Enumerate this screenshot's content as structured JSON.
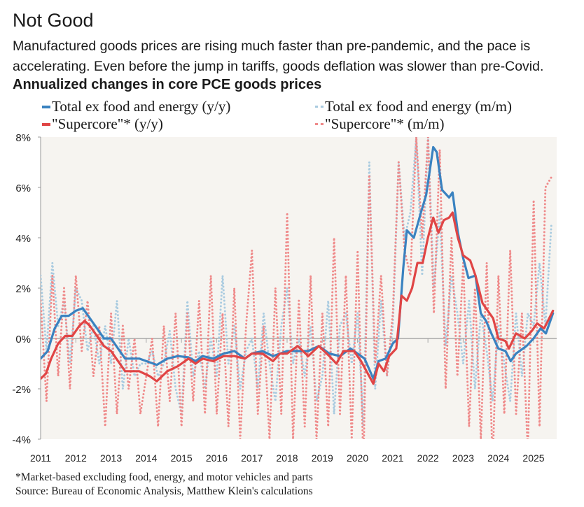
{
  "header": {
    "title": "Not Good",
    "subtitle": "Manufactured goods prices are rising much faster than pre-pandemic, and the pace is accelerating. Even before the jump in tariffs, goods deflation was slower than pre-Covid."
  },
  "footer": {
    "note": "*Market-based excluding food, energy, and motor vehicles and parts",
    "source": "Source: Bureau of Economic Analysis, Matthew Klein's calculations"
  },
  "chart_data": {
    "type": "line",
    "title": "Annualized changes in core PCE goods prices",
    "xlabel": "",
    "ylabel": "",
    "xlim": [
      2011.0,
      2025.65
    ],
    "ylim": [
      -4,
      8
    ],
    "yticks": [
      -4,
      -2,
      0,
      2,
      4,
      6,
      8
    ],
    "ytick_labels": [
      "-4%",
      "-2%",
      "0%",
      "2%",
      "4%",
      "6%",
      "8%"
    ],
    "xticks": [
      2011,
      2012,
      2013,
      2014,
      2015,
      2016,
      2017,
      2018,
      2019,
      2020,
      2021,
      2022,
      2023,
      2024,
      2025
    ],
    "xtick_labels": [
      "2011",
      "2012",
      "2013",
      "2014",
      "2015",
      "2016",
      "2017",
      "2018",
      "2019",
      "2020",
      "2021",
      "2022",
      "2023",
      "2024",
      "2025"
    ],
    "legend_position": "top",
    "grid": false,
    "colors": {
      "blue": "#3a82c0",
      "red": "#e04545",
      "light_blue": "#a9cbe0",
      "light_red": "#ef8a8a",
      "plot_bg": "#f6f4f0"
    },
    "series": [
      {
        "name": "Total ex food and energy (m/m)",
        "style": "dotted",
        "color": "#a9cbe0",
        "x_start": 2011.0,
        "x_step": 0.1667,
        "values": [
          2.5,
          -0.5,
          3.0,
          0.5,
          1.5,
          -1.0,
          2.0,
          1.5,
          -0.5,
          0.5,
          -1.0,
          0.5,
          -1.0,
          1.5,
          -2.0,
          0.0,
          -1.5,
          -1.0,
          -1.0,
          -0.5,
          -1.5,
          -1.0,
          0.3,
          -2.0,
          -3.0,
          1.5,
          -1.5,
          -0.5,
          -2.0,
          0.0,
          -1.5,
          2.5,
          -1.0,
          0.5,
          -2.0,
          -0.5,
          0.0,
          -2.0,
          1.0,
          -1.0,
          -2.5,
          0.5,
          2.0,
          -1.0,
          0.0,
          -1.5,
          0.5,
          -2.5,
          -1.5,
          1.5,
          -3.0,
          0.5,
          1.0,
          -1.0,
          1.0,
          -3.5,
          7.0,
          -2.0,
          1.5,
          -1.5,
          0.5,
          7.0,
          4.0,
          5.0,
          8.0,
          2.5,
          8.0,
          2.0,
          5.0,
          -0.3,
          2.5,
          1.0,
          -1.0,
          1.5,
          -2.0,
          1.0,
          -0.5,
          -2.5,
          0.5,
          -1.0,
          -2.5,
          1.0,
          -1.5,
          1.0,
          0.5,
          3.0,
          0.5,
          4.5
        ]
      },
      {
        "name": "\"Supercore\"* (m/m)",
        "style": "dotted",
        "color": "#ef8a8a",
        "x_start": 2011.0,
        "x_step": 0.1667,
        "values": [
          1.5,
          -2.5,
          2.5,
          -1.5,
          2.0,
          -2.0,
          2.5,
          -0.5,
          1.5,
          -1.5,
          0.5,
          -3.5,
          1.0,
          -3.0,
          0.5,
          -2.0,
          0.0,
          -3.0,
          -1.5,
          0.0,
          -3.5,
          0.5,
          -2.5,
          1.0,
          -3.5,
          1.0,
          -2.5,
          1.5,
          -3.0,
          2.5,
          -3.0,
          1.0,
          -3.5,
          2.0,
          -4.0,
          0.5,
          3.5,
          -3.0,
          0.5,
          -4.0,
          2.0,
          -3.0,
          5.0,
          -4.0,
          1.5,
          -3.5,
          2.5,
          -4.0,
          1.0,
          -3.5,
          4.0,
          -3.0,
          2.5,
          -4.0,
          3.5,
          -5.0,
          6.5,
          -1.0,
          2.5,
          -1.5,
          1.0,
          7.0,
          3.5,
          2.5,
          8.0,
          4.0,
          8.0,
          1.0,
          7.5,
          -2.0,
          4.0,
          -1.5,
          3.0,
          -3.5,
          2.0,
          -4.0,
          3.0,
          -5.0,
          2.5,
          -3.0,
          3.5,
          -3.0,
          1.0,
          -4.5,
          5.5,
          -3.5,
          6.0,
          6.4
        ]
      },
      {
        "name": "Total ex food and energy (y/y)",
        "style": "solid",
        "color": "#3a82c0",
        "x": [
          2011.0,
          2011.2,
          2011.4,
          2011.6,
          2011.8,
          2012.0,
          2012.2,
          2012.4,
          2012.6,
          2012.8,
          2013.0,
          2013.2,
          2013.4,
          2013.8,
          2014.0,
          2014.3,
          2014.6,
          2014.9,
          2015.2,
          2015.4,
          2015.6,
          2015.9,
          2016.2,
          2016.5,
          2016.8,
          2017.0,
          2017.3,
          2017.6,
          2017.8,
          2018.0,
          2018.3,
          2018.6,
          2018.9,
          2019.2,
          2019.5,
          2019.8,
          2020.0,
          2020.2,
          2020.45,
          2020.6,
          2020.8,
          2021.0,
          2021.15,
          2021.3,
          2021.4,
          2021.6,
          2021.8,
          2021.95,
          2022.15,
          2022.25,
          2022.4,
          2022.6,
          2022.7,
          2022.85,
          2023.0,
          2023.15,
          2023.35,
          2023.5,
          2023.65,
          2023.8,
          2024.0,
          2024.2,
          2024.35,
          2024.5,
          2024.8,
          2025.0,
          2025.2,
          2025.35,
          2025.55
        ],
        "values": [
          -0.8,
          -0.5,
          0.4,
          0.9,
          0.9,
          1.1,
          1.2,
          0.8,
          0.4,
          0.0,
          0.0,
          -0.4,
          -0.8,
          -0.8,
          -0.9,
          -1.05,
          -0.8,
          -0.7,
          -0.75,
          -0.9,
          -0.7,
          -0.8,
          -0.6,
          -0.5,
          -0.8,
          -0.6,
          -0.5,
          -0.7,
          -0.6,
          -0.5,
          -0.5,
          -0.5,
          -0.3,
          -0.6,
          -0.7,
          -0.4,
          -0.6,
          -0.8,
          -1.6,
          -0.9,
          -0.8,
          -0.2,
          0.0,
          2.8,
          4.3,
          4.0,
          5.0,
          5.7,
          7.6,
          7.4,
          5.9,
          5.6,
          5.8,
          4.2,
          3.2,
          2.4,
          2.5,
          1.0,
          0.7,
          0.2,
          -0.4,
          -0.5,
          -0.9,
          -0.6,
          -0.3,
          0.0,
          0.4,
          0.2,
          1.0
        ]
      },
      {
        "name": "\"Supercore\"* (y/y)",
        "style": "solid",
        "color": "#e04545",
        "x": [
          2011.0,
          2011.15,
          2011.3,
          2011.5,
          2011.7,
          2011.9,
          2012.1,
          2012.25,
          2012.4,
          2012.6,
          2012.8,
          2013.0,
          2013.2,
          2013.4,
          2013.8,
          2014.1,
          2014.3,
          2014.6,
          2014.9,
          2015.2,
          2015.4,
          2015.6,
          2015.9,
          2016.2,
          2016.5,
          2016.8,
          2017.0,
          2017.3,
          2017.6,
          2017.8,
          2018.0,
          2018.3,
          2018.6,
          2018.9,
          2019.2,
          2019.4,
          2019.6,
          2019.9,
          2020.1,
          2020.45,
          2020.6,
          2020.75,
          2020.9,
          2021.1,
          2021.25,
          2021.4,
          2021.55,
          2021.7,
          2021.85,
          2022.0,
          2022.15,
          2022.3,
          2022.45,
          2022.6,
          2022.7,
          2022.85,
          2023.0,
          2023.2,
          2023.35,
          2023.55,
          2023.7,
          2023.85,
          2024.0,
          2024.2,
          2024.3,
          2024.5,
          2024.75,
          2024.95,
          2025.1,
          2025.3,
          2025.55
        ],
        "values": [
          -1.6,
          -1.4,
          -0.8,
          -0.2,
          0.1,
          0.1,
          0.5,
          0.7,
          0.5,
          0.1,
          -0.3,
          -0.5,
          -0.9,
          -1.3,
          -1.3,
          -1.5,
          -1.7,
          -1.3,
          -1.1,
          -0.8,
          -1.0,
          -0.8,
          -0.9,
          -0.7,
          -0.7,
          -0.8,
          -0.6,
          -0.6,
          -0.9,
          -0.6,
          -0.6,
          -0.3,
          -0.7,
          -0.3,
          -0.7,
          -1.0,
          -0.5,
          -0.5,
          -0.9,
          -1.8,
          -1.0,
          -1.3,
          -0.7,
          -0.4,
          1.7,
          1.5,
          2.0,
          3.0,
          3.0,
          4.0,
          4.8,
          4.2,
          4.7,
          4.8,
          5.0,
          4.0,
          3.3,
          3.1,
          2.5,
          1.4,
          1.1,
          0.8,
          0.0,
          -0.1,
          -0.4,
          0.2,
          0.0,
          0.3,
          0.6,
          0.4,
          1.1
        ]
      }
    ]
  }
}
